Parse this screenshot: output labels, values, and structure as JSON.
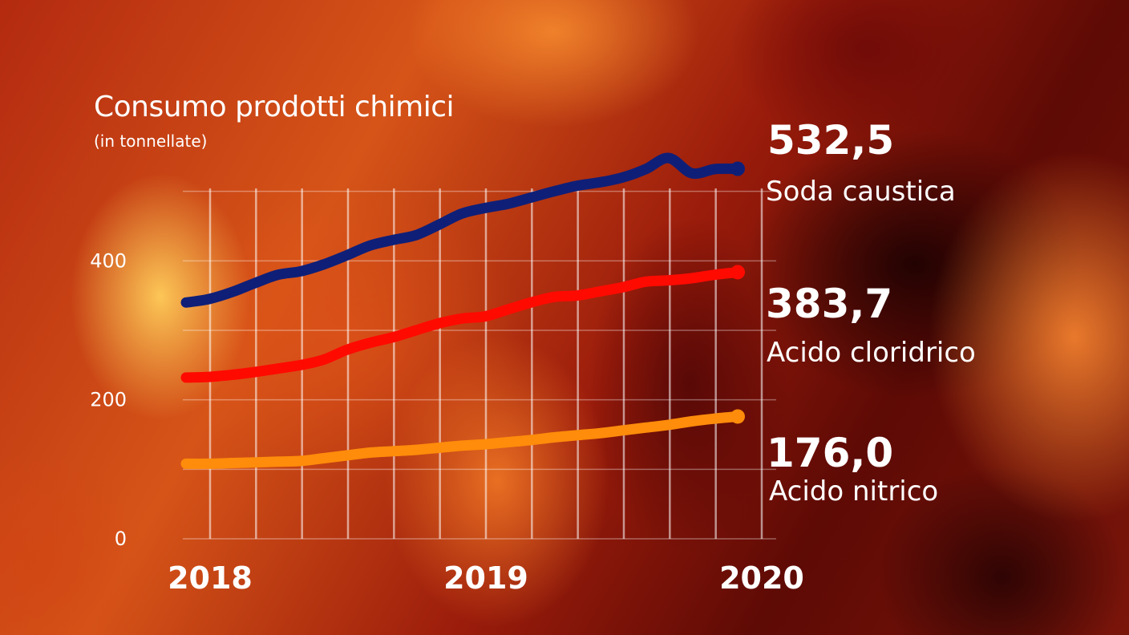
{
  "chart_data": {
    "type": "line",
    "title": "Consumo prodotti chimici",
    "subtitle": "(in tonnellate)",
    "xlabel": "",
    "ylabel": "",
    "x_tick_labels": [
      "2018",
      "2019",
      "2020"
    ],
    "y_ticks": [
      0,
      200,
      400
    ],
    "y_tick_labels": [
      "0",
      "200",
      "400"
    ],
    "ylim": [
      0,
      570
    ],
    "xlim": [
      0,
      24
    ],
    "grid": true,
    "series": [
      {
        "name": "Soda caustica",
        "color": "#0f1f78",
        "end_value_label": "532,5",
        "x": [
          0,
          1,
          2,
          3,
          4,
          5,
          6,
          7,
          8,
          9,
          10,
          11,
          12,
          13,
          14,
          15,
          16,
          17,
          18,
          19,
          20,
          21,
          22,
          23,
          24
        ],
        "values": [
          340,
          345,
          355,
          368,
          380,
          385,
          395,
          408,
          422,
          430,
          437,
          452,
          468,
          476,
          482,
          491,
          500,
          508,
          513,
          520,
          532,
          548,
          526,
          532,
          532.5
        ]
      },
      {
        "name": "Acido cloridrico",
        "color": "#ff0a00",
        "end_value_label": "383,7",
        "x": [
          0,
          1,
          2,
          3,
          4,
          5,
          6,
          7,
          8,
          9,
          10,
          11,
          12,
          13,
          14,
          15,
          16,
          17,
          18,
          19,
          20,
          21,
          22,
          23,
          24
        ],
        "values": [
          232,
          233,
          236,
          240,
          245,
          250,
          258,
          272,
          282,
          290,
          300,
          310,
          317,
          320,
          330,
          340,
          348,
          350,
          356,
          362,
          370,
          372,
          375,
          380,
          383.7
        ]
      },
      {
        "name": "Acido nitrico",
        "color": "#ff8c0a",
        "end_value_label": "176,0",
        "x": [
          0,
          1,
          2,
          3,
          4,
          5,
          6,
          7,
          8,
          9,
          10,
          11,
          12,
          13,
          14,
          15,
          16,
          17,
          18,
          19,
          20,
          21,
          22,
          23,
          24
        ],
        "values": [
          108,
          108,
          109,
          110,
          111,
          112,
          116,
          120,
          124,
          126,
          128,
          131,
          134,
          136,
          139,
          142,
          146,
          149,
          152,
          156,
          160,
          164,
          169,
          173,
          176.0
        ]
      }
    ]
  }
}
